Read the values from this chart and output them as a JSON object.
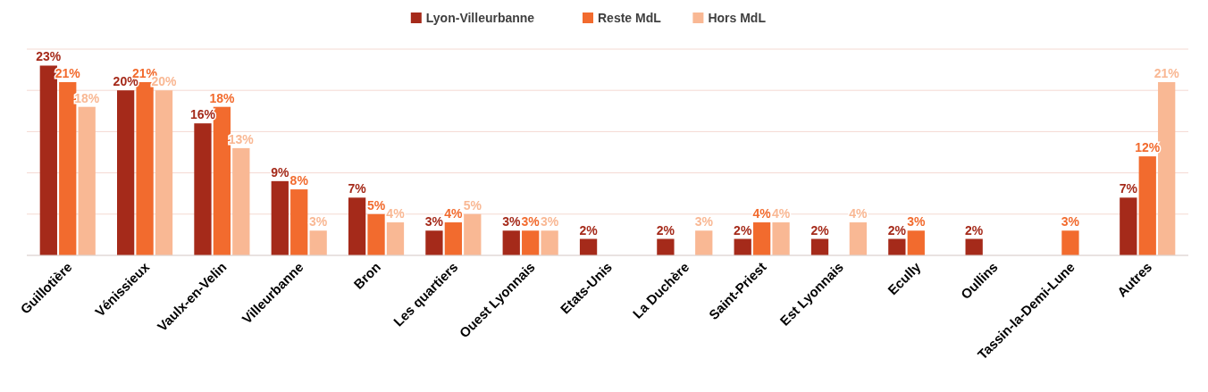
{
  "chart_data": {
    "type": "bar",
    "categories": [
      "Guillotière",
      "Vénissieux",
      "Vaulx-en-Velin",
      "Villeurbanne",
      "Bron",
      "Les quartiers",
      "Ouest Lyonnais",
      "Etats-Unis",
      "La Duchère",
      "Saint-Priest",
      "Est Lyonnais",
      "Ecully",
      "Oullins",
      "Tassin-la-Demi-Lune",
      "Autres"
    ],
    "series": [
      {
        "name": "Lyon-Villeurbanne",
        "color": "#a52a1a",
        "values": [
          23,
          20,
          16,
          9,
          7,
          3,
          3,
          2,
          2,
          2,
          2,
          2,
          2,
          null,
          7
        ],
        "value_labels": [
          "23%",
          "20%",
          "16%",
          "9%",
          "7%",
          "3%",
          "3%",
          "2%",
          "2%",
          "2%",
          "2%",
          "2%",
          "2%",
          null,
          "7%"
        ]
      },
      {
        "name": "Reste MdL",
        "color": "#f26b2e",
        "values": [
          21,
          21,
          18,
          8,
          5,
          4,
          3,
          null,
          null,
          4,
          null,
          3,
          null,
          3,
          12
        ],
        "value_labels": [
          "21%",
          "21%",
          "18%",
          "8%",
          "5%",
          "4%",
          "3%",
          null,
          null,
          "4%",
          null,
          "3%",
          null,
          "3%",
          "12%"
        ]
      },
      {
        "name": "Hors MdL",
        "color": "#f9b894",
        "values": [
          18,
          20,
          13,
          3,
          4,
          5,
          3,
          null,
          3,
          4,
          4,
          null,
          null,
          null,
          21
        ],
        "value_labels": [
          "18%",
          "20%",
          "13%",
          "3%",
          "4%",
          "5%",
          "3%",
          null,
          "3%",
          "4%",
          "4%",
          null,
          null,
          null,
          "21%"
        ]
      }
    ],
    "ylim": [
      0,
      25
    ],
    "yticks": [
      {
        "value": 0,
        "label": null
      },
      {
        "value": 5,
        "label": null
      },
      {
        "value": 10,
        "label": null
      },
      {
        "value": 15,
        "label": null
      },
      {
        "value": 20,
        "label": null
      },
      {
        "value": 25,
        "label": null
      }
    ],
    "tick_labels": "x",
    "grid": "y",
    "legend": "top"
  }
}
